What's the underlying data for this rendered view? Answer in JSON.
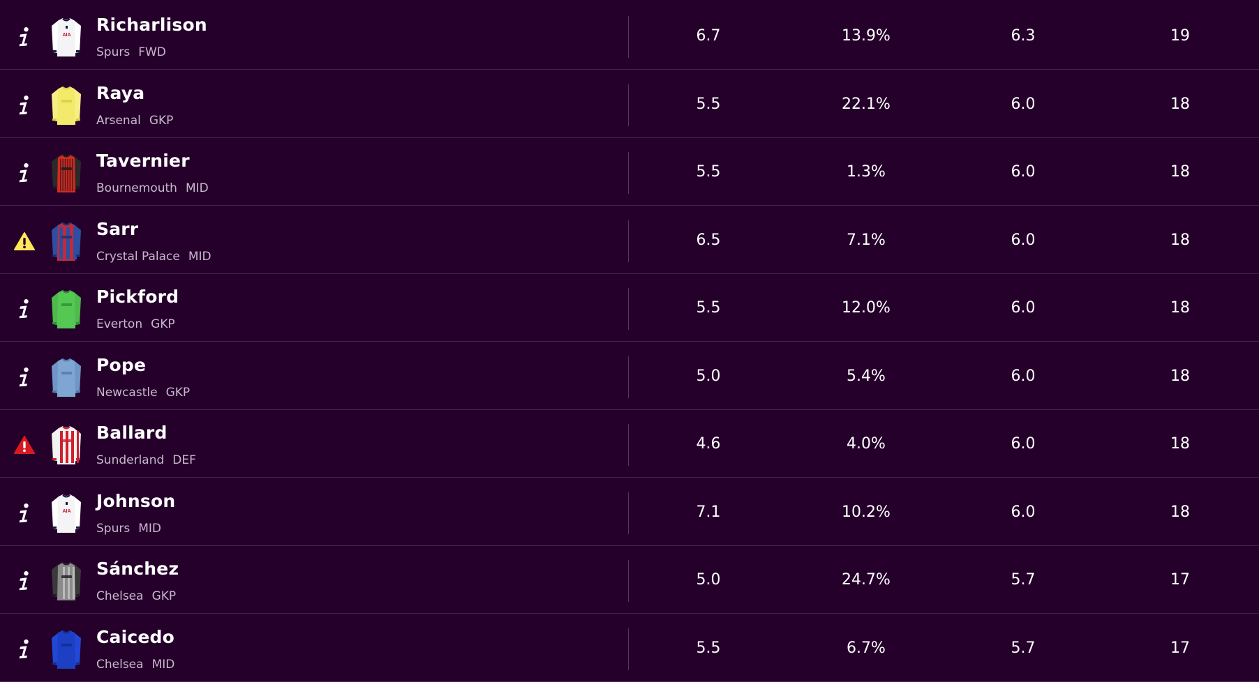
{
  "players": [
    {
      "status": "info",
      "name": "Richarlison",
      "team": "Spurs",
      "position": "FWD",
      "kit": "spurs",
      "col1": "6.7",
      "col2": "13.9%",
      "col3": "6.3",
      "col4": "19"
    },
    {
      "status": "info",
      "name": "Raya",
      "team": "Arsenal",
      "position": "GKP",
      "kit": "arsenal-gk",
      "col1": "5.5",
      "col2": "22.1%",
      "col3": "6.0",
      "col4": "18"
    },
    {
      "status": "info",
      "name": "Tavernier",
      "team": "Bournemouth",
      "position": "MID",
      "kit": "bournemouth",
      "col1": "5.5",
      "col2": "1.3%",
      "col3": "6.0",
      "col4": "18"
    },
    {
      "status": "doubtful",
      "name": "Sarr",
      "team": "Crystal Palace",
      "position": "MID",
      "kit": "crystal-palace",
      "col1": "6.5",
      "col2": "7.1%",
      "col3": "6.0",
      "col4": "18"
    },
    {
      "status": "info",
      "name": "Pickford",
      "team": "Everton",
      "position": "GKP",
      "kit": "everton-gk",
      "col1": "5.5",
      "col2": "12.0%",
      "col3": "6.0",
      "col4": "18"
    },
    {
      "status": "info",
      "name": "Pope",
      "team": "Newcastle",
      "position": "GKP",
      "kit": "newcastle-gk",
      "col1": "5.0",
      "col2": "5.4%",
      "col3": "6.0",
      "col4": "18"
    },
    {
      "status": "injured",
      "name": "Ballard",
      "team": "Sunderland",
      "position": "DEF",
      "kit": "sunderland",
      "col1": "4.6",
      "col2": "4.0%",
      "col3": "6.0",
      "col4": "18"
    },
    {
      "status": "info",
      "name": "Johnson",
      "team": "Spurs",
      "position": "MID",
      "kit": "spurs",
      "col1": "7.1",
      "col2": "10.2%",
      "col3": "6.0",
      "col4": "18"
    },
    {
      "status": "info",
      "name": "Sánchez",
      "team": "Chelsea",
      "position": "GKP",
      "kit": "chelsea-gk",
      "col1": "5.0",
      "col2": "24.7%",
      "col3": "5.7",
      "col4": "17"
    },
    {
      "status": "info",
      "name": "Caicedo",
      "team": "Chelsea",
      "position": "MID",
      "kit": "chelsea",
      "col1": "5.5",
      "col2": "6.7%",
      "col3": "5.7",
      "col4": "17"
    }
  ],
  "kits": {
    "spurs": {
      "body": "#f4f4f6",
      "sleeve": "#ffffff",
      "trim": "#16193c",
      "stripe": "#f4f4f6",
      "text": "AIA",
      "textColor": "#c8102e"
    },
    "arsenal-gk": {
      "body": "#f3ea6c",
      "sleeve": "#f6ef86",
      "trim": "#d9cc3a",
      "stripe": "#f3ea6c",
      "text": "",
      "textColor": "#b3261e"
    },
    "bournemouth": {
      "body": "#d02a22",
      "sleeve": "#2a2a2a",
      "trim": "#1a1a1a",
      "stripe": "#2b1a1a",
      "text": "",
      "textColor": "#ffffff"
    },
    "crystal-palace": {
      "body": "#c32a38",
      "sleeve": "#2d4fa3",
      "trim": "#1b2f6e",
      "stripe": "#2d4fa3",
      "text": "",
      "textColor": "#ffffff"
    },
    "everton-gk": {
      "body": "#55c853",
      "sleeve": "#4dba4b",
      "trim": "#2e8f33",
      "stripe": "#55c853",
      "text": "",
      "textColor": "#ffffff"
    },
    "newcastle-gk": {
      "body": "#7fa6d3",
      "sleeve": "#6f96c6",
      "trim": "#4f78ad",
      "stripe": "#7fa6d3",
      "text": "",
      "textColor": "#ffffff"
    },
    "sunderland": {
      "body": "#f2f2f2",
      "sleeve": "#f2f2f2",
      "trim": "#d21f2c",
      "stripe": "#d21f2c",
      "text": "",
      "textColor": "#ffffff"
    },
    "chelsea-gk": {
      "body": "#8b8b8b",
      "sleeve": "#3a3a3a",
      "trim": "#1f1f1f",
      "stripe": "#cfcfcf",
      "text": "",
      "textColor": "#ffffff"
    },
    "chelsea": {
      "body": "#1c3fc4",
      "sleeve": "#2248d6",
      "trim": "#132c8f",
      "stripe": "#1c3fc4",
      "text": "",
      "textColor": "#ffffff"
    }
  },
  "colors": {
    "background": "#25002b",
    "divider": "#4b1f52",
    "secondaryText": "#c8b8cc",
    "warningYellow": "#ffe65b",
    "injuryRed": "#d81920"
  }
}
